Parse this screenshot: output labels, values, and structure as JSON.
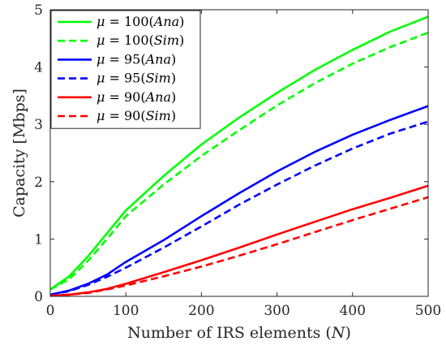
{
  "chart_data": {
    "type": "line",
    "xlabel": "Number of IRS elements (N)",
    "xlabel_parts": {
      "prefix": "Number of IRS elements (",
      "var": "N",
      "suffix": ")"
    },
    "ylabel": "Capacity [Mbps]",
    "xlim": [
      0,
      500
    ],
    "ylim": [
      0,
      5
    ],
    "xticks": [
      0,
      100,
      200,
      300,
      400,
      500
    ],
    "yticks": [
      0,
      1,
      2,
      3,
      4,
      5
    ],
    "grid": false,
    "legend_position": "top-left",
    "x": [
      0,
      25,
      50,
      75,
      100,
      150,
      200,
      250,
      300,
      350,
      400,
      450,
      500
    ],
    "series": [
      {
        "name": "μ = 100(Ana)",
        "mu": "100",
        "tag": "Ana",
        "color": "#00ff00",
        "dash": "solid",
        "values": [
          0.12,
          0.35,
          0.7,
          1.1,
          1.5,
          2.1,
          2.65,
          3.12,
          3.55,
          3.95,
          4.3,
          4.62,
          4.88
        ]
      },
      {
        "name": "μ = 100(Sim)",
        "mu": "100",
        "tag": "Sim",
        "color": "#00ff00",
        "dash": "dashed",
        "values": [
          0.12,
          0.3,
          0.62,
          1.0,
          1.4,
          1.95,
          2.45,
          2.9,
          3.33,
          3.72,
          4.06,
          4.35,
          4.6
        ]
      },
      {
        "name": "μ = 95(Ana)",
        "mu": "95",
        "tag": "Ana",
        "color": "#0000ff",
        "dash": "solid",
        "values": [
          0.03,
          0.1,
          0.22,
          0.38,
          0.6,
          0.98,
          1.4,
          1.8,
          2.18,
          2.52,
          2.82,
          3.08,
          3.32
        ]
      },
      {
        "name": "μ = 95(Sim)",
        "mu": "95",
        "tag": "Sim",
        "color": "#0000ff",
        "dash": "dashed",
        "values": [
          0.03,
          0.09,
          0.2,
          0.34,
          0.5,
          0.85,
          1.22,
          1.6,
          1.95,
          2.28,
          2.58,
          2.84,
          3.05
        ]
      },
      {
        "name": "μ = 90(Ana)",
        "mu": "90",
        "tag": "Ana",
        "color": "#ff0000",
        "dash": "solid",
        "values": [
          0.01,
          0.03,
          0.07,
          0.13,
          0.22,
          0.42,
          0.63,
          0.85,
          1.08,
          1.3,
          1.52,
          1.72,
          1.93
        ]
      },
      {
        "name": "μ = 90(Sim)",
        "mu": "90",
        "tag": "Sim",
        "color": "#ff0000",
        "dash": "dashed",
        "values": [
          0.01,
          0.03,
          0.06,
          0.12,
          0.19,
          0.35,
          0.52,
          0.71,
          0.91,
          1.12,
          1.33,
          1.53,
          1.73
        ]
      }
    ]
  }
}
